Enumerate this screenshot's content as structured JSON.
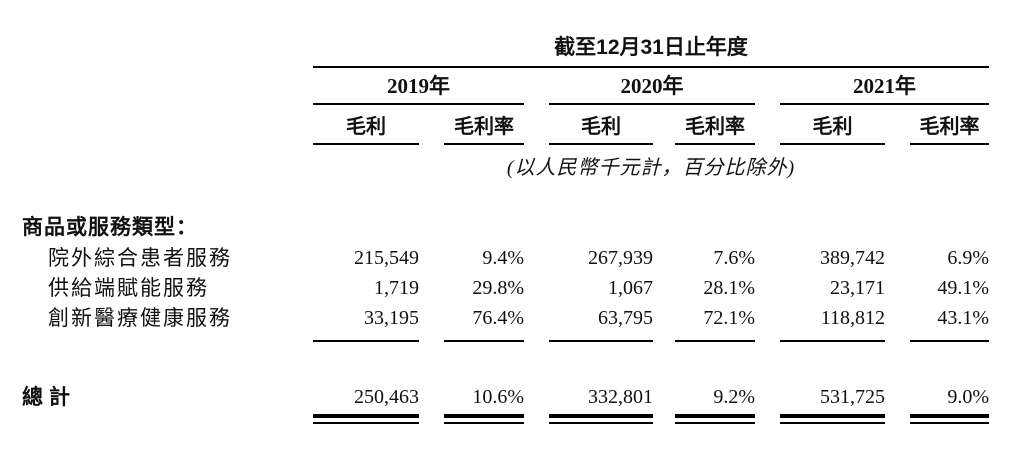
{
  "table": {
    "title": "截至12月31日止年度",
    "unit_note": "(以人民幣千元計，百分比除外)",
    "year_groups": [
      {
        "label": "2019年"
      },
      {
        "label": "2020年"
      },
      {
        "label": "2021年"
      }
    ],
    "sub_headers": {
      "gross_profit": "毛利",
      "gross_margin": "毛利率"
    },
    "category_header": "商品或服務類型：",
    "rows": [
      {
        "label": "院外綜合患者服務",
        "values": [
          "215,549",
          "9.4%",
          "267,939",
          "7.6%",
          "389,742",
          "6.9%"
        ]
      },
      {
        "label": "供給端賦能服務",
        "values": [
          "1,719",
          "29.8%",
          "1,067",
          "28.1%",
          "23,171",
          "49.1%"
        ]
      },
      {
        "label": "創新醫療健康服務",
        "values": [
          "33,195",
          "76.4%",
          "63,795",
          "72.1%",
          "118,812",
          "43.1%"
        ]
      }
    ],
    "total": {
      "label": "總計",
      "values": [
        "250,463",
        "10.6%",
        "332,801",
        "9.2%",
        "531,725",
        "9.0%"
      ]
    },
    "colors": {
      "text": "#111111",
      "rule": "#000000",
      "background": "#ffffff"
    }
  }
}
